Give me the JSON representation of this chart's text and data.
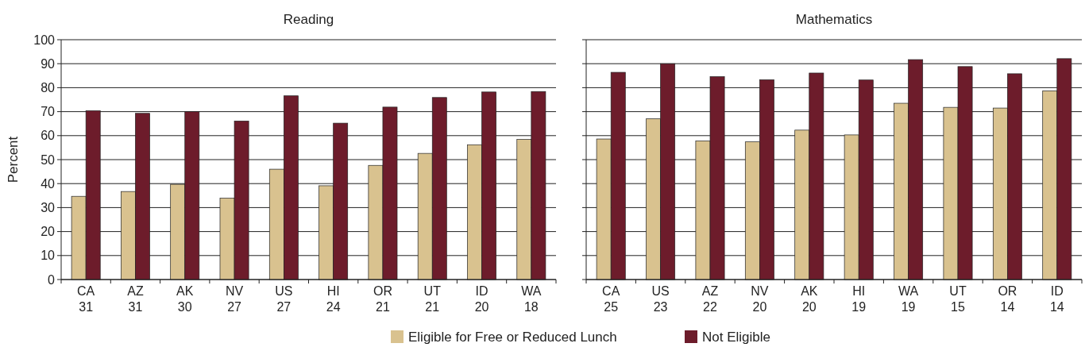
{
  "chart_data": [
    {
      "type": "bar",
      "title": "Reading",
      "ylabel": "Percent",
      "categories": [
        "CA\n31",
        "AZ\n31",
        "AK\n30",
        "NV\n27",
        "US\n27",
        "HI\n24",
        "OR\n21",
        "UT\n21",
        "ID\n20",
        "WA\n18"
      ],
      "series": [
        {
          "name": "Eligible for Free or Reduced Lunch",
          "color": "#d9c28f",
          "values": [
            34.7,
            36.7,
            39.7,
            33.9,
            46,
            39.1,
            47.6,
            52.6,
            56.2,
            58.4
          ]
        },
        {
          "name": "Not Eligible",
          "color": "#6d1c2b",
          "values": [
            70.4,
            69.3,
            70,
            66.1,
            76.6,
            65.2,
            71.9,
            75.9,
            78.2,
            78.4
          ]
        }
      ],
      "ylim": [
        0,
        100
      ],
      "yticks": [
        0,
        10,
        20,
        30,
        40,
        50,
        60,
        70,
        80,
        90,
        100
      ],
      "grid": "y",
      "legend": "bottom"
    },
    {
      "type": "bar",
      "title": "Mathematics",
      "categories": [
        "CA\n25",
        "US\n23",
        "AZ\n22",
        "NV\n20",
        "AK\n20",
        "HI\n19",
        "WA\n19",
        "UT\n15",
        "OR\n14",
        "ID\n14"
      ],
      "series": [
        {
          "color": "#d9c28f",
          "values": [
            58.6,
            67,
            57.8,
            57.4,
            62.3,
            60.3,
            73.5,
            71.8,
            71.5,
            78.7
          ]
        },
        {
          "color": "#6d1c2b",
          "values": [
            86.4,
            90,
            84.6,
            83.3,
            86.1,
            83.2,
            91.7,
            88.8,
            85.8,
            92.1
          ]
        }
      ],
      "ylim": [
        0,
        100
      ],
      "yticks": [
        0,
        10,
        20,
        30,
        40,
        50,
        60,
        70,
        80,
        90,
        100
      ],
      "grid": "y",
      "tick_labels": "x"
    }
  ]
}
